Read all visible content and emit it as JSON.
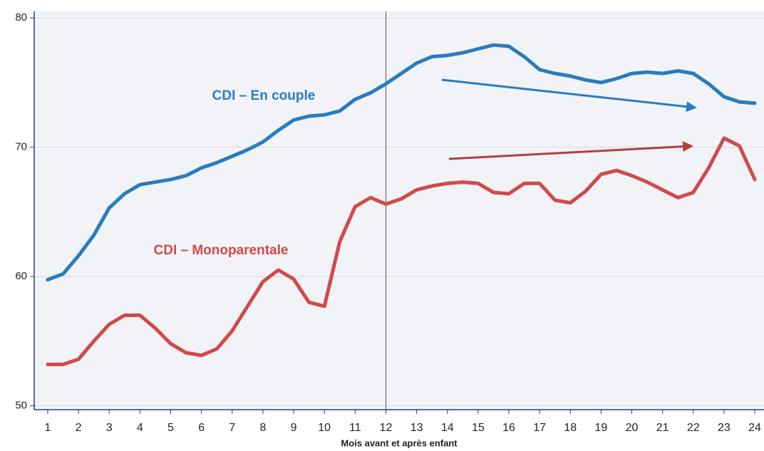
{
  "chart_data": {
    "type": "line",
    "xlabel": "Mois avant et après enfant",
    "annotations": [
      "CDI – En couple",
      "CDI – Monoparentale"
    ],
    "reference_x": 12,
    "x": [
      1,
      1.5,
      2,
      2.5,
      3,
      3.5,
      4,
      4.5,
      5,
      5.5,
      6,
      6.5,
      7,
      7.5,
      8,
      8.5,
      9,
      9.5,
      10,
      10.5,
      11,
      11.5,
      12,
      12.5,
      13,
      13.5,
      14,
      14.5,
      15,
      15.5,
      16,
      16.5,
      17,
      17.5,
      18,
      18.5,
      19,
      19.5,
      20,
      20.5,
      21,
      21.5,
      22,
      22.5,
      23,
      23.5,
      24
    ],
    "series": [
      {
        "name": "CDI – En couple",
        "color": "#2a7bbf",
        "values": [
          59.75,
          60.2,
          61.6,
          63.2,
          65.3,
          66.4,
          67.1,
          67.3,
          67.5,
          67.8,
          68.4,
          68.8,
          69.3,
          69.8,
          70.4,
          71.3,
          72.1,
          72.4,
          72.5,
          72.8,
          73.7,
          74.2,
          74.9,
          75.7,
          76.5,
          77.0,
          77.1,
          77.3,
          77.6,
          77.9,
          77.8,
          77.0,
          76.0,
          75.7,
          75.5,
          75.2,
          75.0,
          75.3,
          75.7,
          75.8,
          75.7,
          75.9,
          75.7,
          74.9,
          73.9,
          73.5,
          73.4
        ]
      },
      {
        "name": "CDI – Monoparentale",
        "color": "#d04a4a",
        "values": [
          53.2,
          53.2,
          53.6,
          55.0,
          56.3,
          57.0,
          57.0,
          56.0,
          54.8,
          54.1,
          53.9,
          54.4,
          55.8,
          57.7,
          59.6,
          60.5,
          59.8,
          58.0,
          57.7,
          62.7,
          65.4,
          66.1,
          65.6,
          66.0,
          66.7,
          67.0,
          67.2,
          67.3,
          67.2,
          66.5,
          66.4,
          67.2,
          67.2,
          65.9,
          65.7,
          66.6,
          67.9,
          68.2,
          67.8,
          67.3,
          66.7,
          66.1,
          66.5,
          68.4,
          70.7,
          70.1,
          67.5
        ]
      }
    ],
    "xlim": [
      0.56,
      24.3
    ],
    "xticks": [
      1,
      2,
      3,
      4,
      5,
      6,
      7,
      8,
      9,
      10,
      11,
      12,
      13,
      14,
      15,
      16,
      17,
      18,
      19,
      20,
      21,
      22,
      23,
      24
    ],
    "ylim": [
      49.7,
      80.5
    ],
    "yticks": [
      50,
      60,
      70,
      80
    ],
    "grid": true
  }
}
